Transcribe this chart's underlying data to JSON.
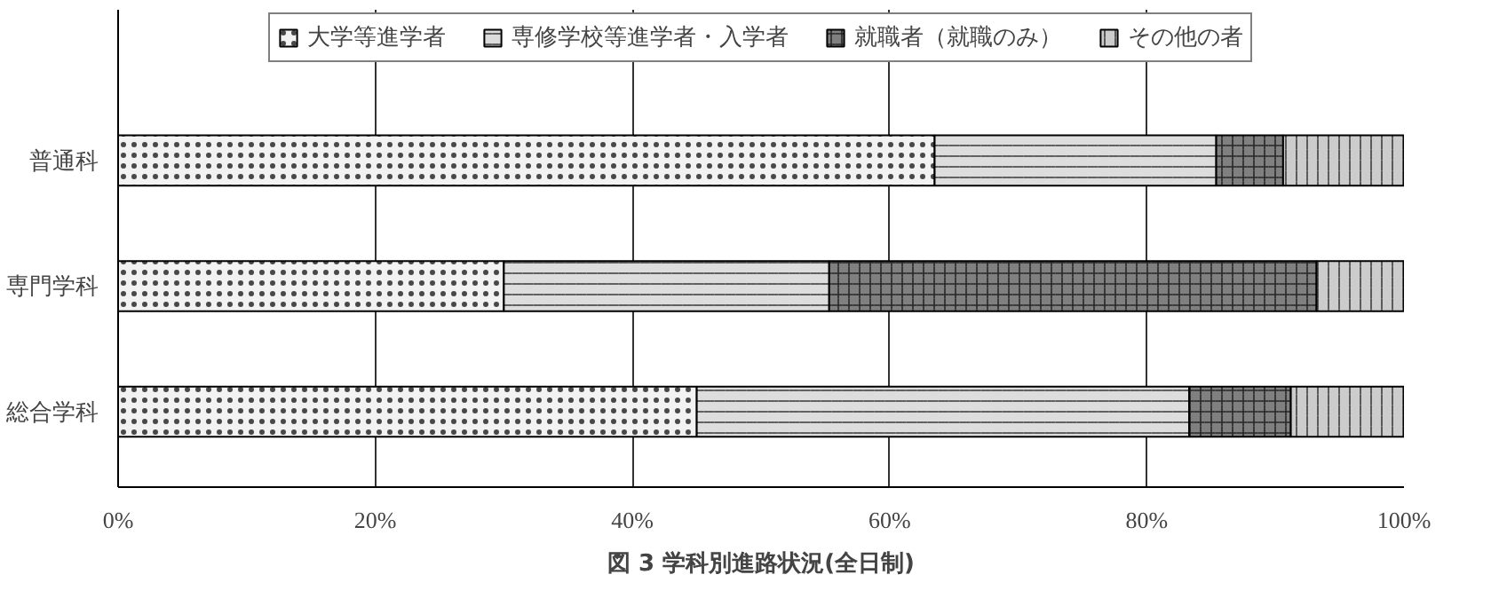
{
  "chart_data": {
    "type": "bar",
    "orientation": "horizontal",
    "stacked": true,
    "title": "図 3 学科別進路状況(全日制)",
    "categories": [
      "普通科",
      "専門学科",
      "総合学科"
    ],
    "series": [
      {
        "name": "大学等進学者",
        "color": "#f2f2f2",
        "values": [
          63.5,
          30.0,
          45.0
        ]
      },
      {
        "name": "専修学校等進学者・入学者",
        "color": "#dddddd",
        "values": [
          21.9,
          25.3,
          38.3
        ]
      },
      {
        "name": "就職者（就職のみ）",
        "color": "#808080",
        "values": [
          5.2,
          37.9,
          7.9
        ]
      },
      {
        "name": "その他の者",
        "color": "#cccccc",
        "values": [
          9.4,
          6.8,
          8.8
        ]
      }
    ],
    "xlim": [
      0,
      100
    ],
    "xticks": [
      {
        "value": 0,
        "label": "0%"
      },
      {
        "value": 20,
        "label": "20%"
      },
      {
        "value": 40,
        "label": "40%"
      },
      {
        "value": 60,
        "label": "60%"
      },
      {
        "value": 80,
        "label": "80%"
      },
      {
        "value": 100,
        "label": "100%"
      }
    ],
    "grid": "x",
    "legend": "top"
  }
}
